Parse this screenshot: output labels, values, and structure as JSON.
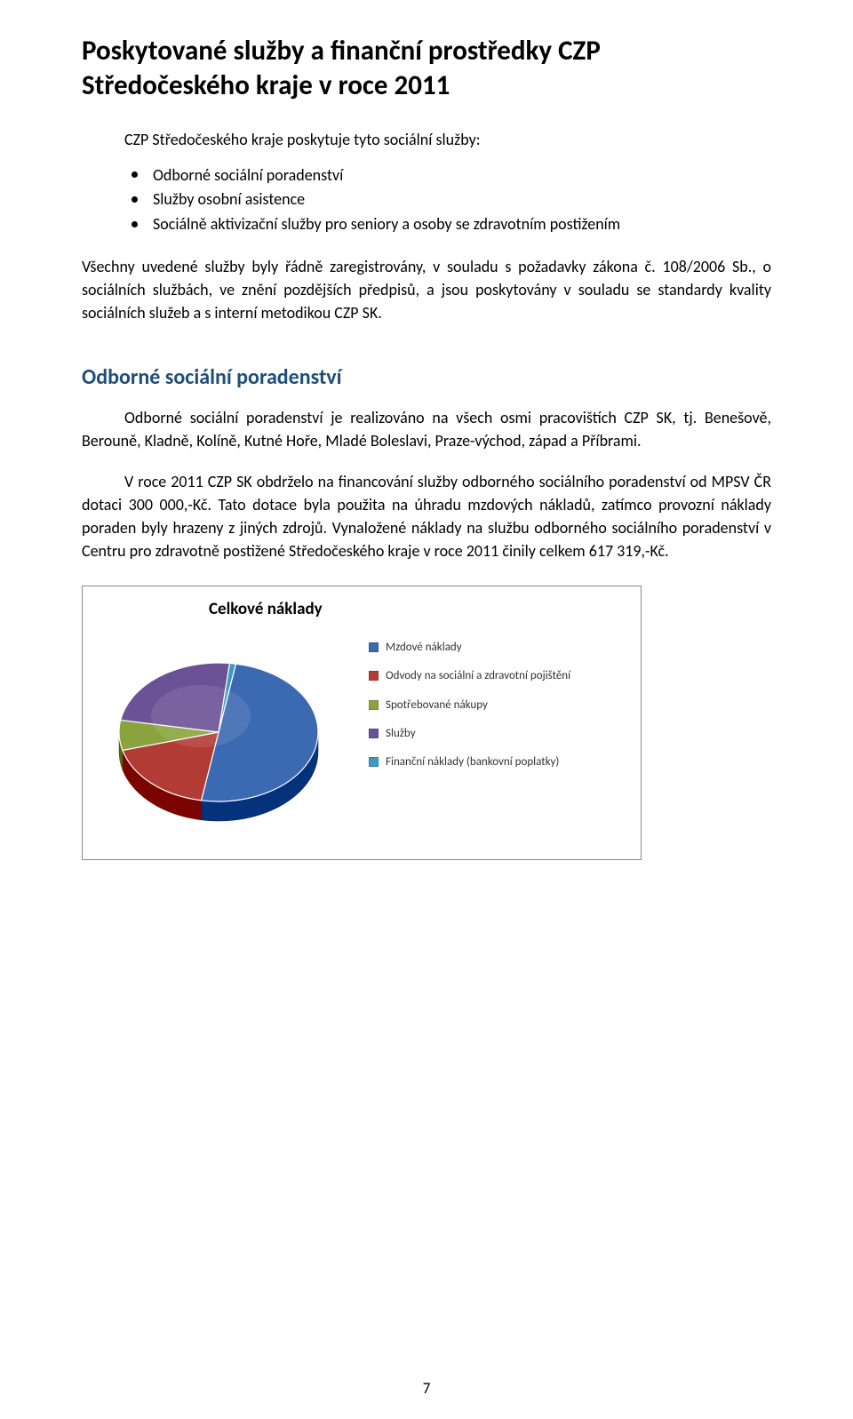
{
  "title_line1": "Poskytované služby a finanční prostředky CZP",
  "title_line2": "Středočeského kraje v roce 2011",
  "intro": "CZP Středočeského kraje poskytuje tyto sociální služby:",
  "bullets": [
    "Odborné sociální poradenství",
    "Služby osobní asistence",
    "Sociálně aktivizační služby pro seniory a osoby se zdravotním postižením"
  ],
  "para1": "Všechny uvedené služby byly řádně zaregistrovány, v souladu s požadavky zákona č. 108/2006 Sb., o sociálních službách, ve znění pozdějších předpisů, a jsou poskytovány v souladu se standardy kvality sociálních služeb a s interní metodikou CZP SK.",
  "section_heading": "Odborné sociální poradenství",
  "para2": "Odborné sociální poradenství je realizováno na všech osmi pracovištích CZP SK, tj. Benešově, Berouně, Kladně, Kolíně, Kutné Hoře, Mladé Boleslavi, Praze-východ, západ a Příbrami.",
  "para3": "V roce 2011 CZP SK obdrželo na financování služby odborného sociálního poradenství od MPSV ČR dotaci 300 000,-Kč. Tato dotace byla použita na úhradu mzdových nákladů, zatímco provozní náklady poraden byly hrazeny z jiných zdrojů. Vynaložené náklady na službu odborného sociálního poradenství v Centru pro zdravotně postižené Středočeského kraje v roce 2011 činily celkem 617 319,-Kč.",
  "chart": {
    "type": "pie",
    "title": "Celkové náklady",
    "background_color": "#ffffff",
    "border_color": "#8a8a8a",
    "title_fontsize": 19,
    "legend_fontsize": 13,
    "legend_marker_size": 11,
    "slices": [
      {
        "label": "Mzdové náklady",
        "value": 50,
        "color": "#3b69b2"
      },
      {
        "label": "Odvody na sociální a zdravotní pojištění",
        "value": 18,
        "color": "#b33b35"
      },
      {
        "label": "Spotřebované nákupy",
        "value": 7,
        "color": "#8aa33e"
      },
      {
        "label": "Služby",
        "value": 24,
        "color": "#6b5196"
      },
      {
        "label": "Finanční náklady (bankovní poplatky)",
        "value": 1,
        "color": "#3c9bbf"
      }
    ]
  },
  "page_number": "7"
}
